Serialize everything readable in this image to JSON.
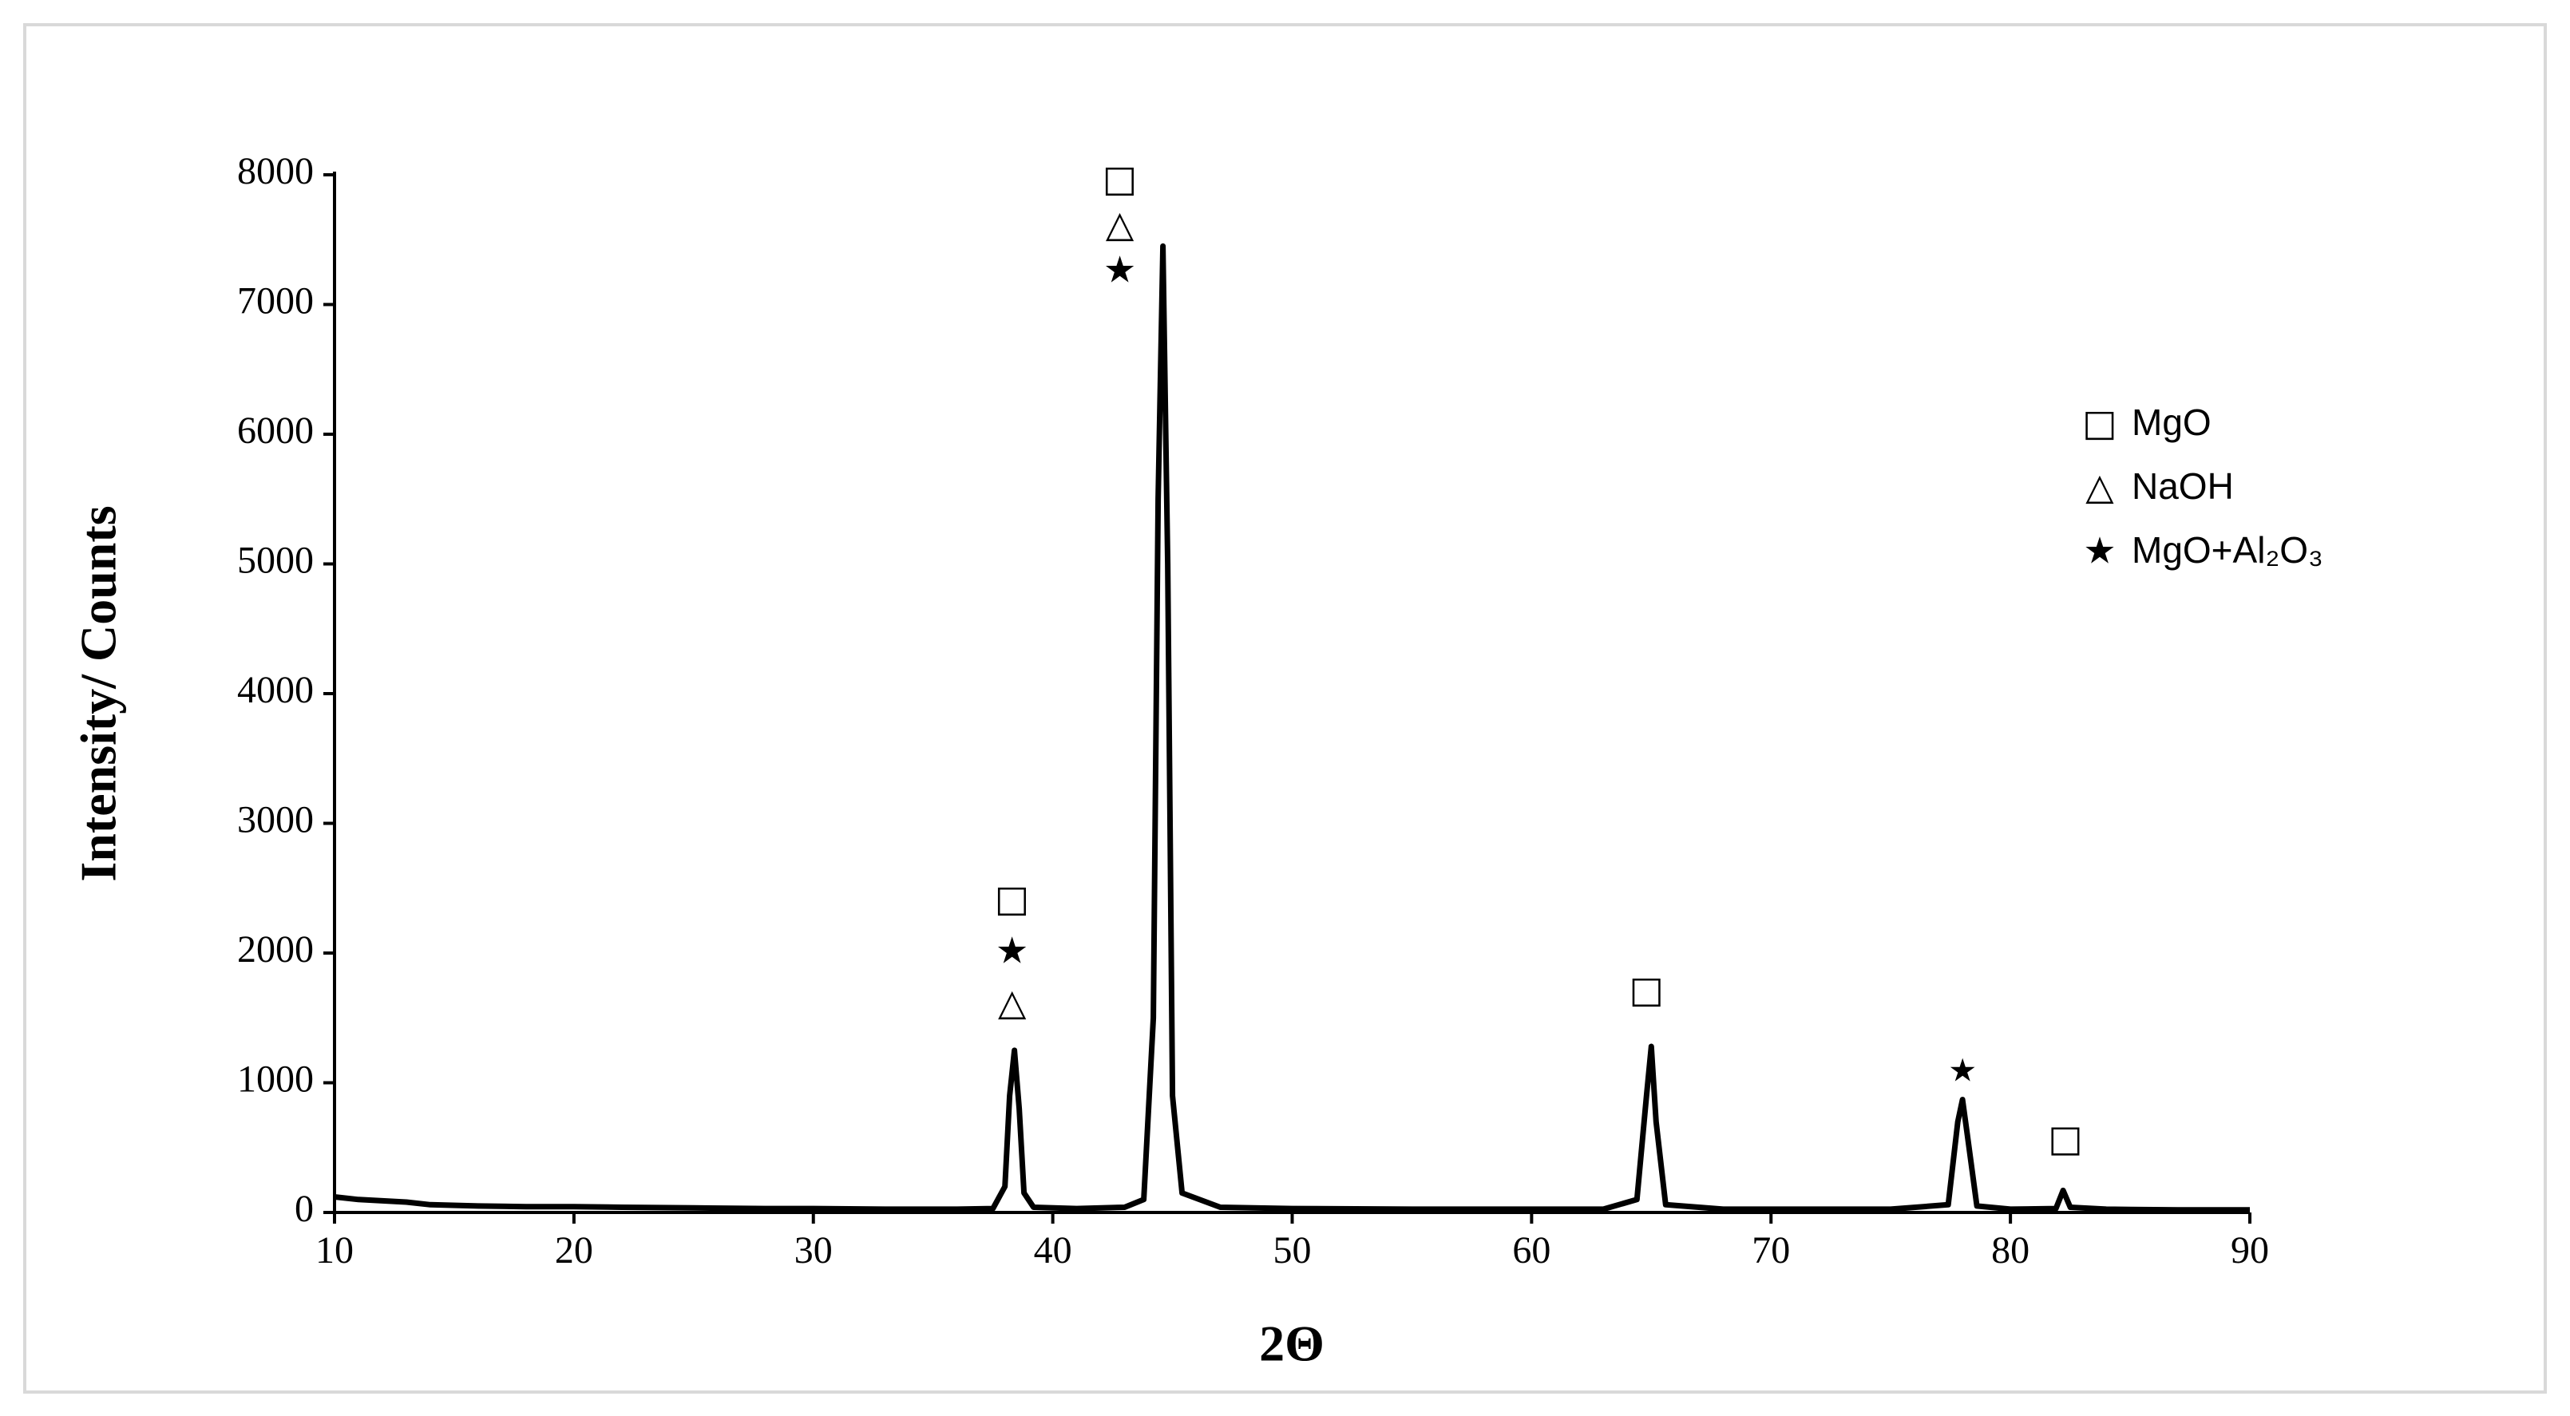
{
  "chart_data": {
    "type": "line",
    "xlabel": "2Θ",
    "ylabel": "Intensity/ Counts",
    "x": [
      10,
      11,
      12,
      13,
      14,
      16,
      18,
      20,
      22,
      25,
      28,
      30,
      33,
      36,
      37.5,
      38.0,
      38.2,
      38.4,
      38.6,
      38.8,
      39.2,
      41,
      43,
      43.8,
      44.2,
      44.4,
      44.6,
      44.8,
      45.0,
      45.4,
      47,
      50,
      55,
      60,
      63,
      64.4,
      64.8,
      65.0,
      65.2,
      65.6,
      68,
      72,
      75,
      77.4,
      77.8,
      78.0,
      78.2,
      78.6,
      80,
      81.9,
      82.2,
      82.5,
      84,
      87,
      90
    ],
    "series": [
      {
        "color": "#000000",
        "values": [
          120,
          100,
          90,
          80,
          60,
          50,
          45,
          45,
          40,
          35,
          30,
          30,
          25,
          25,
          30,
          200,
          900,
          1250,
          800,
          150,
          40,
          30,
          40,
          100,
          1500,
          5500,
          7450,
          5000,
          900,
          150,
          40,
          30,
          25,
          25,
          25,
          100,
          900,
          1280,
          700,
          60,
          25,
          25,
          25,
          60,
          700,
          870,
          600,
          50,
          25,
          30,
          170,
          40,
          25,
          20,
          20
        ]
      }
    ],
    "xlim": [
      10,
      90
    ],
    "xticks": [
      10,
      20,
      30,
      40,
      50,
      60,
      70,
      80,
      90
    ],
    "ylim": [
      0,
      8000
    ],
    "yticks": [
      0,
      1000,
      2000,
      3000,
      4000,
      5000,
      6000,
      7000,
      8000
    ],
    "grid": false,
    "legend": "upper right",
    "markers": [
      {
        "symbol": "□",
        "name": "MgO"
      },
      {
        "symbol": "△",
        "name": "NaOH"
      },
      {
        "symbol": "★",
        "name": "MgO+Al₂O₃"
      }
    ],
    "peak_labels": [
      {
        "marker": 0,
        "x": 38.3,
        "y": 2400
      },
      {
        "marker": 2,
        "x": 38.3,
        "y": 2000
      },
      {
        "marker": 1,
        "x": 38.3,
        "y": 1600
      },
      {
        "marker": 0,
        "x": 42.8,
        "y": 7950
      },
      {
        "marker": 1,
        "x": 42.8,
        "y": 7600
      },
      {
        "marker": 2,
        "x": 42.8,
        "y": 7250
      },
      {
        "marker": 0,
        "x": 64.8,
        "y": 1700
      },
      {
        "marker": 2,
        "x": 78.0,
        "y": 1080
      },
      {
        "marker": 0,
        "x": 82.3,
        "y": 550
      }
    ]
  }
}
